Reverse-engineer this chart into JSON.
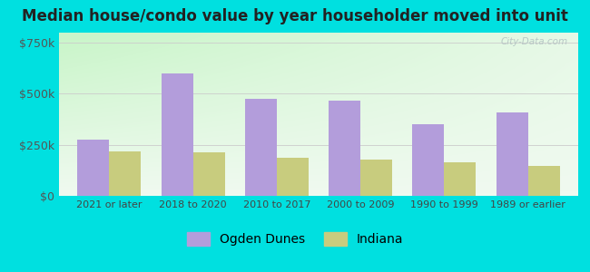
{
  "title": "Median house/condo value by year householder moved into unit",
  "categories": [
    "2021 or later",
    "2018 to 2020",
    "2010 to 2017",
    "2000 to 2009",
    "1990 to 1999",
    "1989 or earlier"
  ],
  "ogden_dunes": [
    275000,
    600000,
    475000,
    468000,
    350000,
    410000
  ],
  "indiana": [
    220000,
    215000,
    185000,
    178000,
    163000,
    148000
  ],
  "ogden_color": "#b39ddb",
  "indiana_color": "#c8cc7e",
  "outer_background": "#00e0e0",
  "yticks": [
    0,
    250000,
    500000,
    750000
  ],
  "ylabels": [
    "$0",
    "$250k",
    "$500k",
    "$750k"
  ],
  "ylim": [
    0,
    800000
  ],
  "legend_ogden": "Ogden Dunes",
  "legend_indiana": "Indiana",
  "watermark": "City-Data.com",
  "title_fontsize": 12,
  "bar_width": 0.38
}
